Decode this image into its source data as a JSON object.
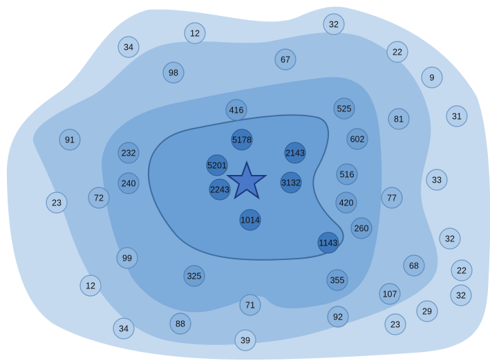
{
  "zone_colors": {
    "outer": "#c5daef",
    "second": "#9fc1e4",
    "third": "#7eacdb",
    "core": "#6a9fd6",
    "core_outline": "#3f6d9f",
    "star_fill": "#4a78c8",
    "star_stroke": "#1d3a78"
  },
  "center_marker": {
    "icon": "star-icon"
  },
  "nodes": [
    {
      "label": "5178",
      "zone": "core"
    },
    {
      "label": "2143",
      "zone": "core"
    },
    {
      "label": "5201",
      "zone": "core"
    },
    {
      "label": "2243",
      "zone": "core"
    },
    {
      "label": "3132",
      "zone": "core"
    },
    {
      "label": "1014",
      "zone": "core"
    },
    {
      "label": "1143",
      "zone": "core"
    },
    {
      "label": "416",
      "zone": "third"
    },
    {
      "label": "525",
      "zone": "third"
    },
    {
      "label": "602",
      "zone": "third"
    },
    {
      "label": "232",
      "zone": "third"
    },
    {
      "label": "240",
      "zone": "third"
    },
    {
      "label": "516",
      "zone": "third"
    },
    {
      "label": "420",
      "zone": "third"
    },
    {
      "label": "260",
      "zone": "third"
    },
    {
      "label": "325",
      "zone": "third"
    },
    {
      "label": "355",
      "zone": "third"
    },
    {
      "label": "67",
      "zone": "second"
    },
    {
      "label": "98",
      "zone": "second"
    },
    {
      "label": "81",
      "zone": "second"
    },
    {
      "label": "91",
      "zone": "second"
    },
    {
      "label": "72",
      "zone": "second"
    },
    {
      "label": "77",
      "zone": "second"
    },
    {
      "label": "99",
      "zone": "second"
    },
    {
      "label": "68",
      "zone": "second"
    },
    {
      "label": "71",
      "zone": "second"
    },
    {
      "label": "88",
      "zone": "second"
    },
    {
      "label": "92",
      "zone": "second"
    },
    {
      "label": "107",
      "zone": "second"
    },
    {
      "label": "12",
      "zone": "outer"
    },
    {
      "label": "32",
      "zone": "outer"
    },
    {
      "label": "34",
      "zone": "outer"
    },
    {
      "label": "22",
      "zone": "outer"
    },
    {
      "label": "9",
      "zone": "outer"
    },
    {
      "label": "31",
      "zone": "outer"
    },
    {
      "label": "33",
      "zone": "outer"
    },
    {
      "label": "23",
      "zone": "outer"
    },
    {
      "label": "32",
      "zone": "outer"
    },
    {
      "label": "22",
      "zone": "outer"
    },
    {
      "label": "32",
      "zone": "outer"
    },
    {
      "label": "12",
      "zone": "outer"
    },
    {
      "label": "29",
      "zone": "outer"
    },
    {
      "label": "34",
      "zone": "outer"
    },
    {
      "label": "23",
      "zone": "outer"
    },
    {
      "label": "39",
      "zone": "outer"
    }
  ]
}
